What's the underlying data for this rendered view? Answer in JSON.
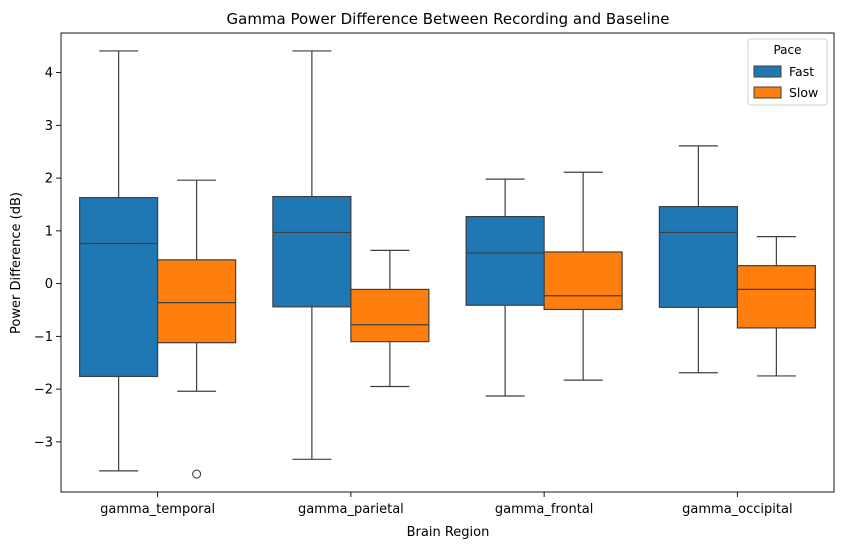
{
  "chart_data": {
    "type": "box",
    "title": "Gamma Power Difference Between Recording and Baseline",
    "xlabel": "Brain Region",
    "ylabel": "Power Difference (dB)",
    "categories": [
      "gamma_temporal",
      "gamma_parietal",
      "gamma_frontal",
      "gamma_occipital"
    ],
    "ylim": [
      -3.95,
      4.75
    ],
    "yticks": [
      -3,
      -2,
      -1,
      0,
      1,
      2,
      3,
      4
    ],
    "grid": false,
    "legend": {
      "title": "Pace",
      "position": "top-right"
    },
    "series": [
      {
        "name": "Fast",
        "color": "#1f77b4",
        "boxes": [
          {
            "whisker_low": -3.55,
            "q1": -1.76,
            "median": 0.76,
            "q3": 1.63,
            "whisker_high": 4.41,
            "outliers": []
          },
          {
            "whisker_low": -3.33,
            "q1": -0.44,
            "median": 0.97,
            "q3": 1.65,
            "whisker_high": 4.41,
            "outliers": []
          },
          {
            "whisker_low": -2.13,
            "q1": -0.41,
            "median": 0.58,
            "q3": 1.27,
            "whisker_high": 1.98,
            "outliers": []
          },
          {
            "whisker_low": -1.69,
            "q1": -0.45,
            "median": 0.97,
            "q3": 1.46,
            "whisker_high": 2.61,
            "outliers": []
          }
        ]
      },
      {
        "name": "Slow",
        "color": "#ff7f0e",
        "boxes": [
          {
            "whisker_low": -2.04,
            "q1": -1.12,
            "median": -0.36,
            "q3": 0.45,
            "whisker_high": 1.96,
            "outliers": [
              -3.61
            ]
          },
          {
            "whisker_low": -1.95,
            "q1": -1.1,
            "median": -0.78,
            "q3": -0.11,
            "whisker_high": 0.63,
            "outliers": []
          },
          {
            "whisker_low": -1.83,
            "q1": -0.49,
            "median": -0.23,
            "q3": 0.6,
            "whisker_high": 2.11,
            "outliers": []
          },
          {
            "whisker_low": -1.75,
            "q1": -0.84,
            "median": -0.11,
            "q3": 0.34,
            "whisker_high": 0.89,
            "outliers": []
          }
        ]
      }
    ]
  }
}
